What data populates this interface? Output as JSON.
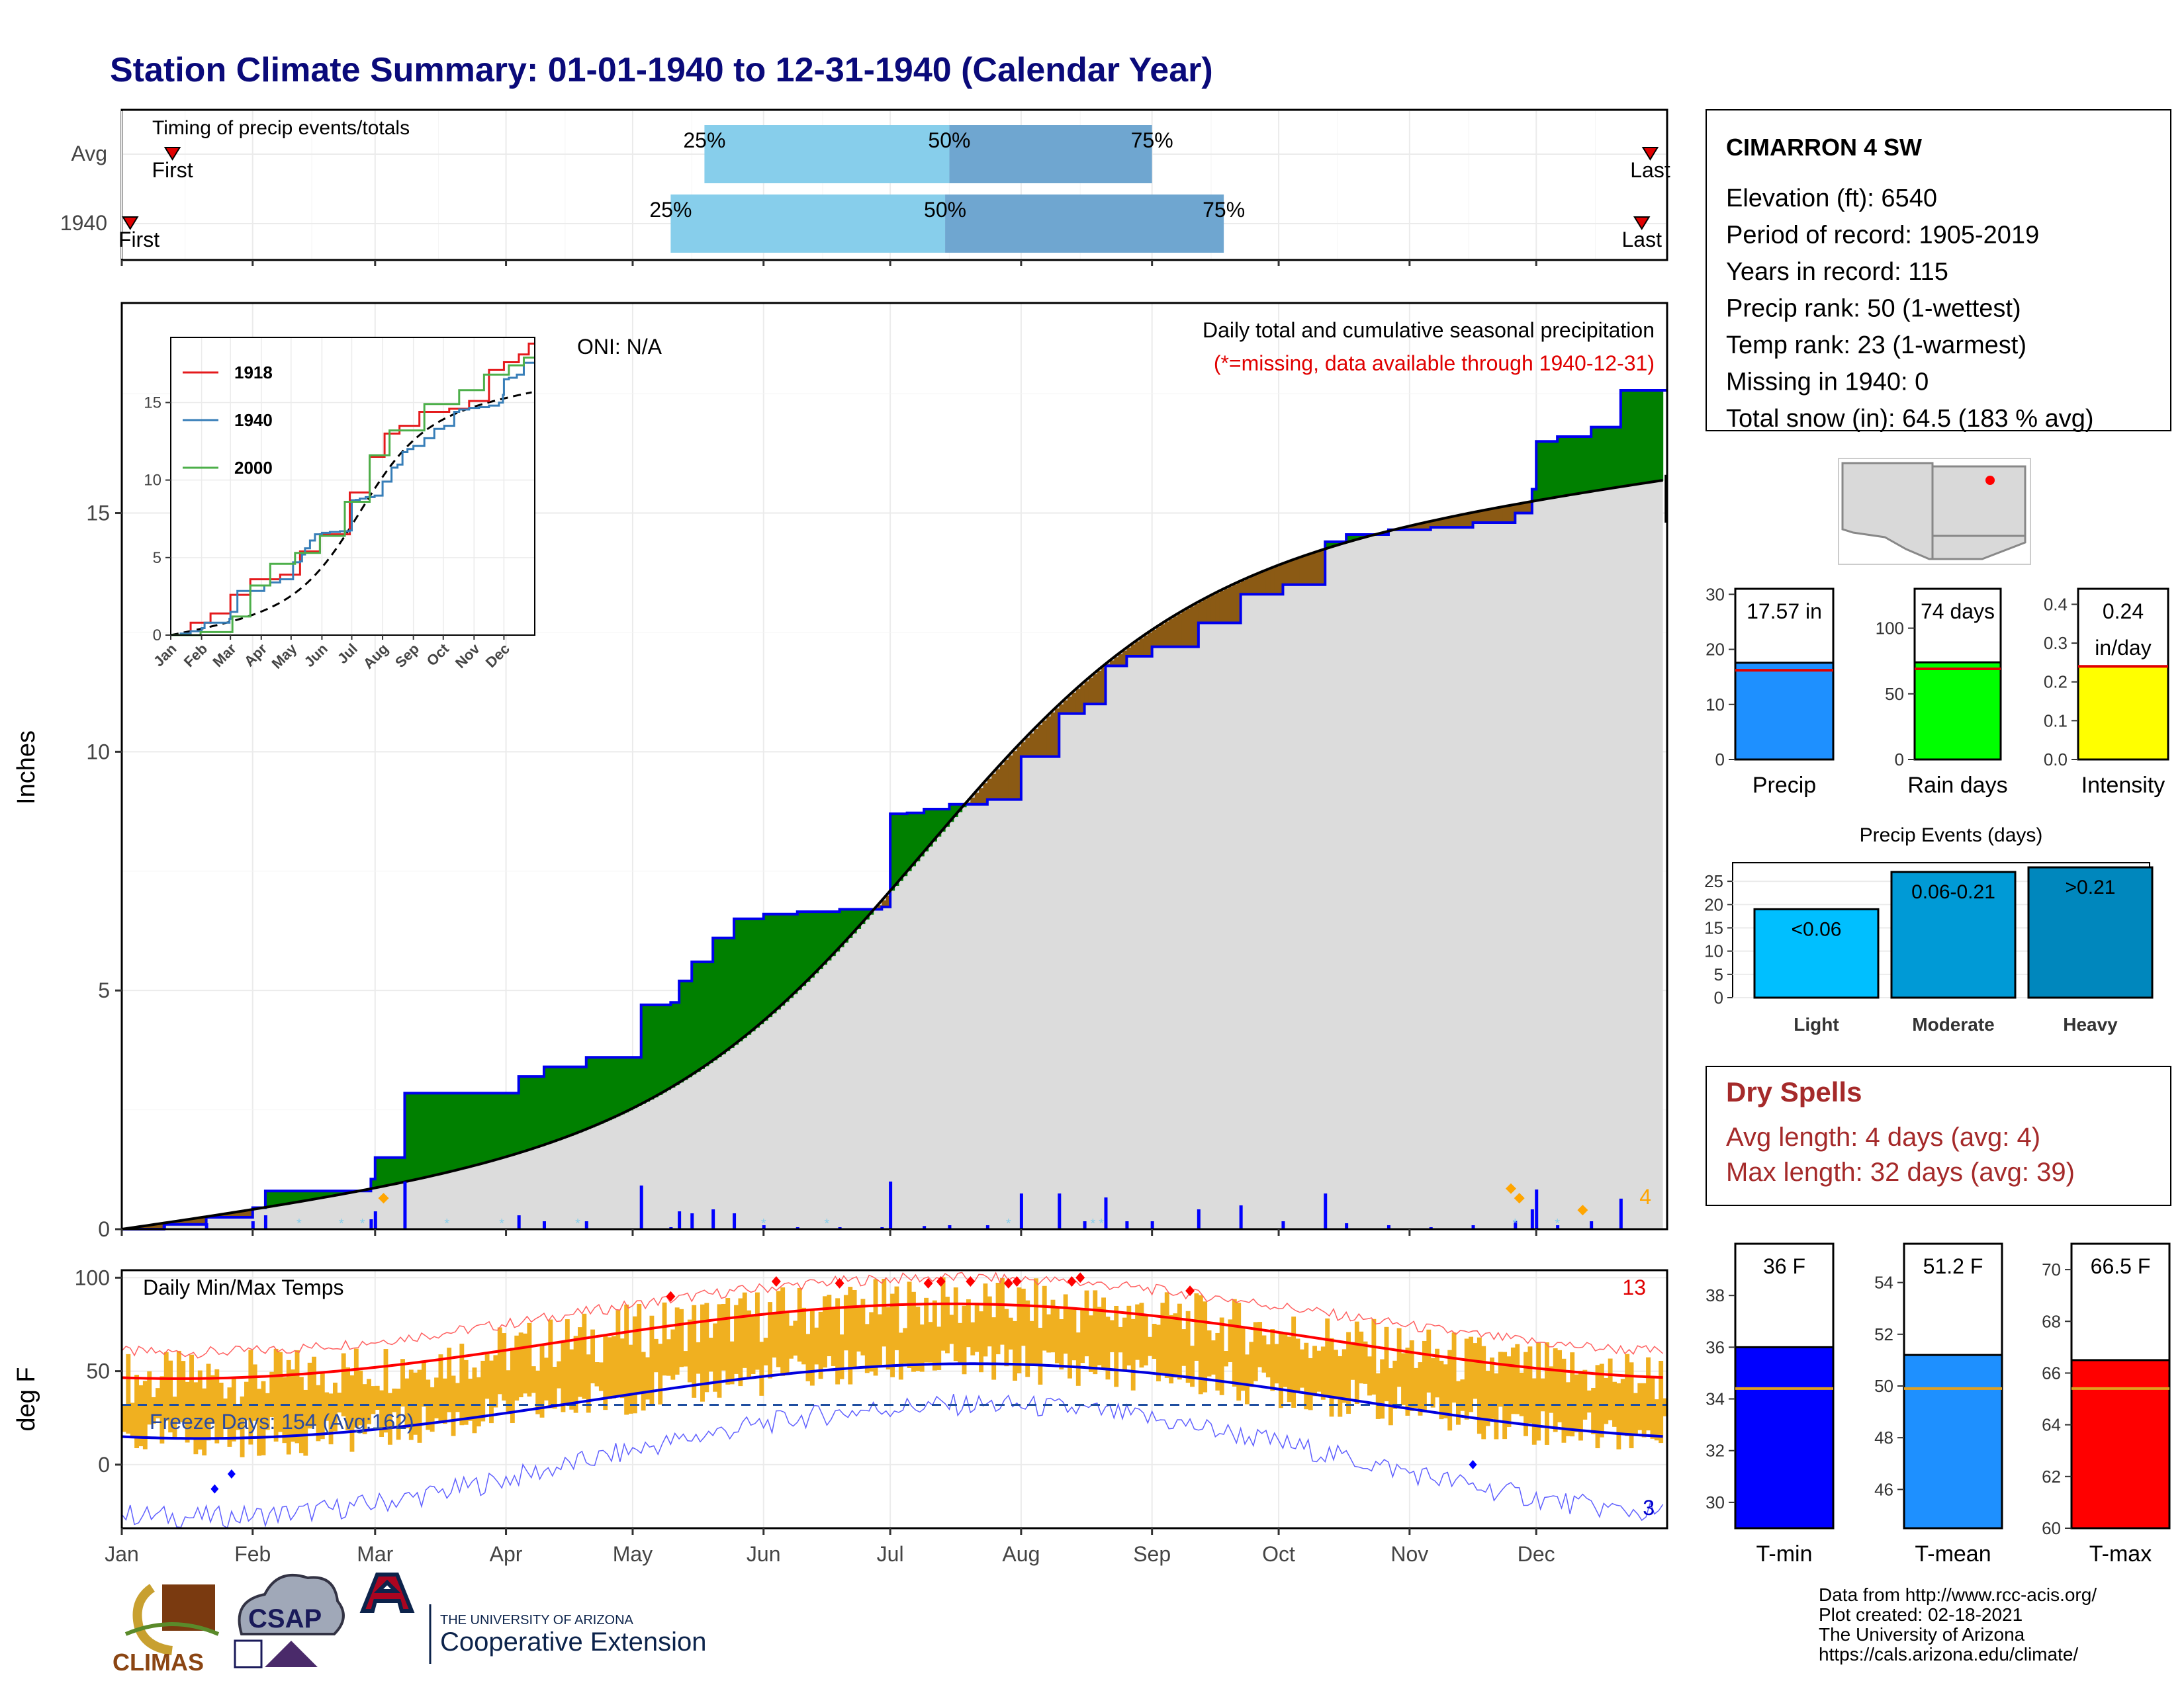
{
  "title": "Station Climate Summary: 01-01-1940 to 12-31-1940 (Calendar Year)",
  "timing": {
    "label": "Timing of precip events/totals",
    "rows": [
      {
        "label": "Avg",
        "first": "First",
        "last": "Last",
        "q25": "25%",
        "q50": "50%",
        "q75": "75%",
        "first_day": 12,
        "last_day": 362,
        "q25_day": 138,
        "q50_day": 196,
        "q75_day": 244
      },
      {
        "label": "1940",
        "first": "First",
        "last": "Last",
        "q25": "25%",
        "q50": "50%",
        "q75": "75%",
        "first_day": 2,
        "last_day": 360,
        "q25_day": 130,
        "q50_day": 195,
        "q75_day": 261
      }
    ]
  },
  "precip_panel": {
    "title": "Daily total and cumulative seasonal precipitation",
    "subtitle": "(*=missing, data available through 1940-12-31)",
    "oni": "ONI: N/A",
    "ylabel": "Inches",
    "count": "4"
  },
  "inset": {
    "legend": [
      "1918",
      "1940",
      "2000"
    ],
    "colors": [
      "#e41a1c",
      "#377eb8",
      "#4daf4a"
    ],
    "months": [
      "Jan",
      "Feb",
      "Mar",
      "Apr",
      "May",
      "Jun",
      "Jul",
      "Aug",
      "Sep",
      "Oct",
      "Nov",
      "Dec"
    ],
    "yticks": [
      "0",
      "5",
      "10",
      "15"
    ]
  },
  "temp_panel": {
    "title": "Daily Min/Max Temps",
    "ylabel": "deg F",
    "freeze": "Freeze Days: 154 (Avg:162)",
    "count_high": "13",
    "count_low": "3"
  },
  "months": [
    "Jan",
    "Feb",
    "Mar",
    "Apr",
    "May",
    "Jun",
    "Jul",
    "Aug",
    "Sep",
    "Oct",
    "Nov",
    "Dec"
  ],
  "station": {
    "name": "CIMARRON 4 SW",
    "lines": [
      "Elevation (ft): 6540",
      "Period of record: 1905-2019",
      "Years in record: 115",
      "Precip rank: 50 (1-wettest)",
      "Temp rank: 23 (1-warmest)",
      "Missing in 1940: 0",
      "Total snow (in): 64.5 (183 % avg)"
    ]
  },
  "summary_bars": {
    "precip": {
      "label": "Precip",
      "value_text": "17.57 in",
      "value": 17.57,
      "avg": 16.2,
      "ymax": 31,
      "ticks": [
        "0",
        "10",
        "20",
        "30"
      ],
      "color": "#1e90ff"
    },
    "raindays": {
      "label": "Rain days",
      "value_text": "74 days",
      "value": 74,
      "avg": 69,
      "ymax": 130,
      "ticks": [
        "0",
        "50",
        "100"
      ],
      "color": "#00ff00"
    },
    "intensity": {
      "label": "Intensity",
      "value_text": "0.24",
      "value_text2": "in/day",
      "value": 0.24,
      "avg": 0.24,
      "ymax": 0.44,
      "ticks": [
        "0.0",
        "0.1",
        "0.2",
        "0.3",
        "0.4"
      ],
      "color": "#ffff00"
    }
  },
  "events": {
    "title": "Precip Events (days)",
    "categories": [
      "Light",
      "Moderate",
      "Heavy"
    ],
    "bar_labels": [
      "<0.06",
      "0.06-0.21",
      ">0.21"
    ],
    "values": [
      19,
      27,
      28
    ],
    "colors": [
      "#00bfff",
      "#009ad6",
      "#0087bd"
    ],
    "ticks": [
      "0",
      "5",
      "10",
      "15",
      "20",
      "25"
    ]
  },
  "dry_spells": {
    "title": "Dry Spells",
    "avg": "Avg length: 4 days (avg: 4)",
    "max": "Max length: 32 days (avg: 39)"
  },
  "temp_bars": {
    "tmin": {
      "label": "T-min",
      "value_text": "36 F",
      "value": 36.0,
      "avg": 34.4,
      "ymin": 29,
      "ymax": 40,
      "ticks": [
        "30",
        "32",
        "34",
        "36",
        "38"
      ],
      "color": "#0000ff"
    },
    "tmean": {
      "label": "T-mean",
      "value_text": "51.2 F",
      "value": 51.2,
      "avg": 49.9,
      "ymin": 44.5,
      "ymax": 55.5,
      "ticks": [
        "46",
        "48",
        "50",
        "52",
        "54"
      ],
      "color": "#1e90ff"
    },
    "tmax": {
      "label": "T-max",
      "value_text": "66.5 F",
      "value": 66.5,
      "avg": 65.4,
      "ymin": 60,
      "ymax": 71,
      "ticks": [
        "60",
        "62",
        "64",
        "66",
        "68",
        "70"
      ],
      "color": "#ff0000"
    }
  },
  "footer": {
    "lines": [
      "Data from http://www.rcc-acis.org/",
      "Plot created: 02-18-2021",
      "The University of Arizona",
      "https://cals.arizona.edu/climate/"
    ],
    "ua_small": "THE UNIVERSITY OF ARIZONA",
    "ua_big": "Cooperative Extension",
    "climas": "CLIMAS",
    "csap": "CSAP"
  },
  "chart_data": {
    "type": "area",
    "title": "Daily total and cumulative seasonal precipitation",
    "ylabel": "Inches",
    "ylim": [
      0,
      19
    ],
    "x_unit": "month-start day index",
    "series": [
      {
        "name": "1940",
        "x": [
          0,
          10,
          20,
          31,
          34,
          59,
          60,
          67,
          90,
          94,
          100,
          110,
          118,
          123,
          130,
          132,
          135,
          140,
          145,
          152,
          160,
          170,
          180,
          182,
          186,
          190,
          196,
          205,
          213,
          222,
          228,
          233,
          238,
          244,
          249,
          255,
          265,
          275,
          285,
          290,
          300,
          310,
          320,
          330,
          334,
          335,
          340,
          348,
          355,
          366
        ],
        "y": [
          0,
          0.1,
          0.25,
          0.45,
          0.8,
          1.05,
          1.5,
          2.85,
          2.85,
          3.2,
          3.4,
          3.6,
          3.6,
          4.7,
          4.75,
          5.2,
          5.6,
          6.1,
          6.5,
          6.6,
          6.65,
          6.7,
          6.75,
          8.7,
          8.72,
          8.8,
          8.9,
          9.0,
          9.9,
          10.8,
          11.0,
          11.8,
          12.0,
          12.2,
          12.2,
          12.7,
          13.3,
          13.5,
          14.4,
          14.55,
          14.65,
          14.7,
          14.8,
          15.0,
          15.5,
          16.5,
          16.6,
          16.8,
          17.57,
          17.57
        ]
      }
    ]
  }
}
